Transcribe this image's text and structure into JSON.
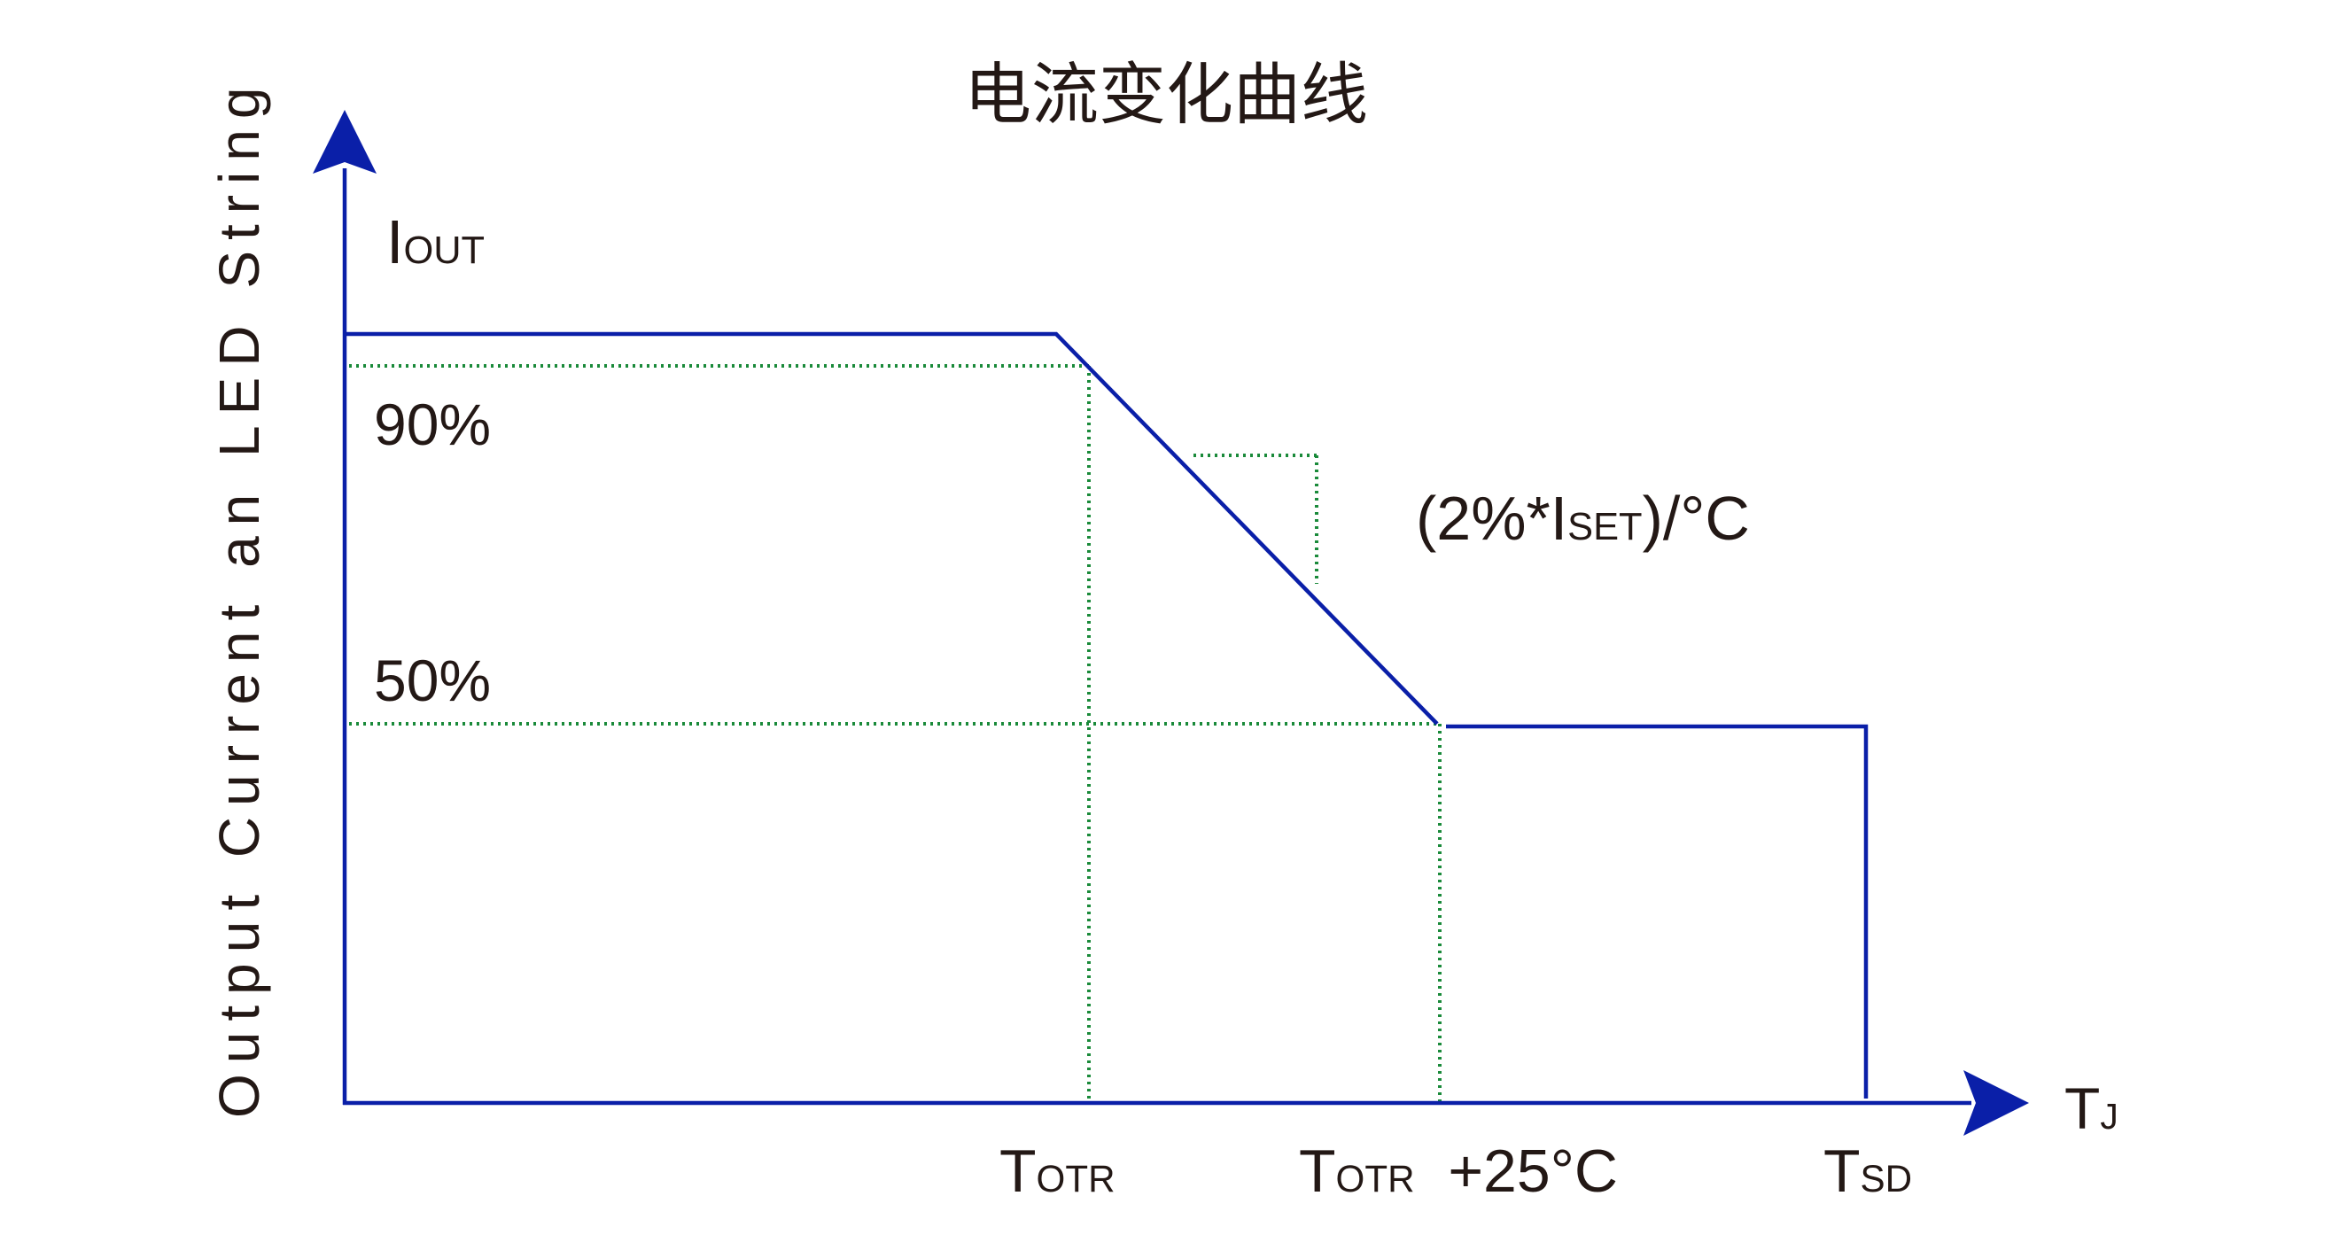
{
  "title": "电流变化曲线",
  "colors": {
    "curve": "#0a1fa8",
    "guide": "#1a8a3a",
    "text": "#231815"
  },
  "chart_data": {
    "type": "line",
    "title": "电流变化曲线",
    "ylabel": "Output Current an LED String",
    "y_axis_symbol": {
      "main": "I",
      "sub": "OUT"
    },
    "x_axis_symbol": {
      "main": "T",
      "sub": "J"
    },
    "y_levels": {
      "p90": "90%",
      "p50": "50%"
    },
    "x_ticks": [
      {
        "main": "T",
        "sub": "OTR",
        "suffix": ""
      },
      {
        "main": "T",
        "sub": "OTR",
        "suffix": "+25°C"
      },
      {
        "main": "T",
        "sub": "SD",
        "suffix": ""
      }
    ],
    "slope_label": {
      "pre": "(2%*I",
      "sub": "SET",
      "post": ")/°C"
    },
    "series": [
      {
        "points_percent": [
          [
            0,
            100
          ],
          [
            "T_OTR-",
            100
          ],
          [
            "T_OTR+25°C",
            50
          ],
          [
            "T_SD",
            50
          ],
          [
            "T_SD",
            0
          ]
        ]
      }
    ]
  }
}
